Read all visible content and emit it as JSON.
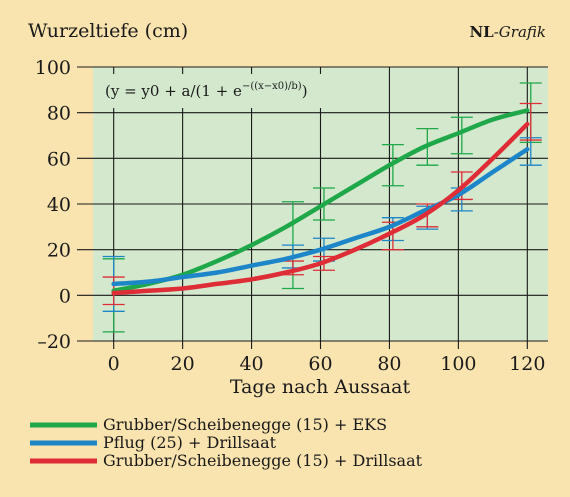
{
  "header": {
    "y_title": "Wurzeltiefe (cm)",
    "brand_bold": "NL",
    "brand_italic": "-Grafik"
  },
  "formula": {
    "main": "(y = y0 + a/(1 + e",
    "exponent": "−((x−x0)/b)",
    "close": ")"
  },
  "colors": {
    "background": "#f9e3ae",
    "plot_area": "#d3e8cd",
    "grid": "#1a1a1a",
    "series": [
      "#1ea84a",
      "#1d86c8",
      "#de2d36"
    ]
  },
  "chart_data": {
    "type": "line",
    "xlabel": "Tage nach Aussaat",
    "ylabel": "Wurzeltiefe (cm)",
    "xlim": [
      -6,
      126
    ],
    "ylim": [
      -20,
      100
    ],
    "xticks": [
      0,
      20,
      40,
      60,
      80,
      100,
      120
    ],
    "yticks": [
      -20,
      0,
      20,
      40,
      60,
      80,
      100
    ],
    "ytick_labels": [
      "–20",
      "0",
      "20",
      "40",
      "60",
      "80",
      "100"
    ],
    "grid": true,
    "legend_placement": "bottom",
    "series": [
      {
        "name": "Grubber/Scheibenegge (15) + EKS",
        "curve_x": [
          0,
          10,
          20,
          30,
          40,
          50,
          60,
          70,
          80,
          90,
          100,
          110,
          120
        ],
        "curve_y": [
          2,
          5,
          9,
          15,
          22,
          30,
          39,
          48,
          57,
          65,
          71,
          77,
          81
        ],
        "points": [
          {
            "x": 0,
            "y": 0,
            "err": 16
          },
          {
            "x": 52,
            "y": 22,
            "err": 19
          },
          {
            "x": 61,
            "y": 40,
            "err": 7
          },
          {
            "x": 81,
            "y": 57,
            "err": 9
          },
          {
            "x": 91,
            "y": 65,
            "err": 8
          },
          {
            "x": 101,
            "y": 70,
            "err": 8
          },
          {
            "x": 121,
            "y": 80,
            "err": 13
          }
        ]
      },
      {
        "name": "Pflug (25) + Drillsaat",
        "curve_x": [
          0,
          10,
          20,
          30,
          40,
          50,
          60,
          70,
          80,
          90,
          100,
          110,
          120
        ],
        "curve_y": [
          5,
          6,
          8,
          10,
          13,
          16,
          20,
          25,
          30,
          37,
          44,
          54,
          64
        ],
        "points": [
          {
            "x": 0,
            "y": 5,
            "err": 12
          },
          {
            "x": 52,
            "y": 17,
            "err": 5
          },
          {
            "x": 61,
            "y": 20,
            "err": 5
          },
          {
            "x": 81,
            "y": 29,
            "err": 5
          },
          {
            "x": 91,
            "y": 34,
            "err": 5
          },
          {
            "x": 101,
            "y": 42,
            "err": 5
          },
          {
            "x": 121,
            "y": 63,
            "err": 6
          }
        ]
      },
      {
        "name": "Grubber/Scheibenegge (15) + Drillsaat",
        "curve_x": [
          0,
          10,
          20,
          30,
          40,
          50,
          60,
          70,
          80,
          90,
          100,
          110,
          120
        ],
        "curve_y": [
          1,
          2,
          3,
          5,
          7,
          10,
          14,
          20,
          27,
          35,
          46,
          60,
          75
        ],
        "points": [
          {
            "x": 0,
            "y": 2,
            "err": 6
          },
          {
            "x": 52,
            "y": 12,
            "err": 3
          },
          {
            "x": 61,
            "y": 14,
            "err": 3
          },
          {
            "x": 81,
            "y": 26,
            "err": 6
          },
          {
            "x": 91,
            "y": 35,
            "err": 5
          },
          {
            "x": 101,
            "y": 48,
            "err": 6
          },
          {
            "x": 121,
            "y": 76,
            "err": 8
          }
        ]
      }
    ]
  }
}
